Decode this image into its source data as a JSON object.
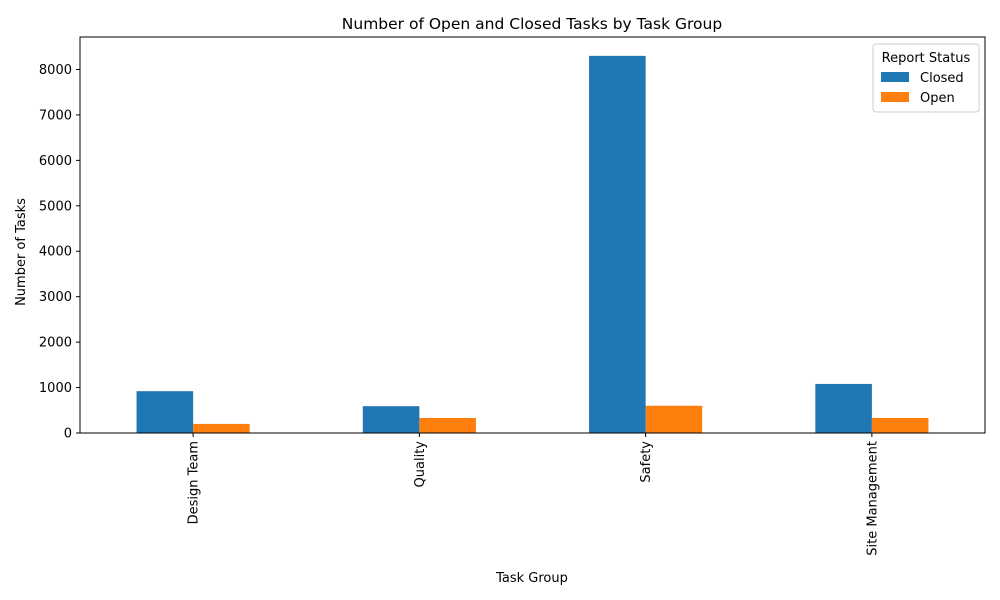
{
  "chart_data": {
    "type": "bar",
    "title": "Number of Open and Closed Tasks by Task Group",
    "xlabel": "Task Group",
    "ylabel": "Number of Tasks",
    "categories": [
      "Design Team",
      "Quality",
      "Safety",
      "Site Management"
    ],
    "series": [
      {
        "name": "Closed",
        "color": "#1f77b4",
        "values": [
          920,
          590,
          8300,
          1080
        ]
      },
      {
        "name": "Open",
        "color": "#ff7f0e",
        "values": [
          200,
          330,
          600,
          330
        ]
      }
    ],
    "ylim": [
      0,
      8715
    ],
    "yticks": [
      "0",
      "1000",
      "2000",
      "3000",
      "4000",
      "5000",
      "6000",
      "7000",
      "8000"
    ],
    "grid": false,
    "legend": {
      "title": "Report Status",
      "placement": "top-right"
    }
  }
}
